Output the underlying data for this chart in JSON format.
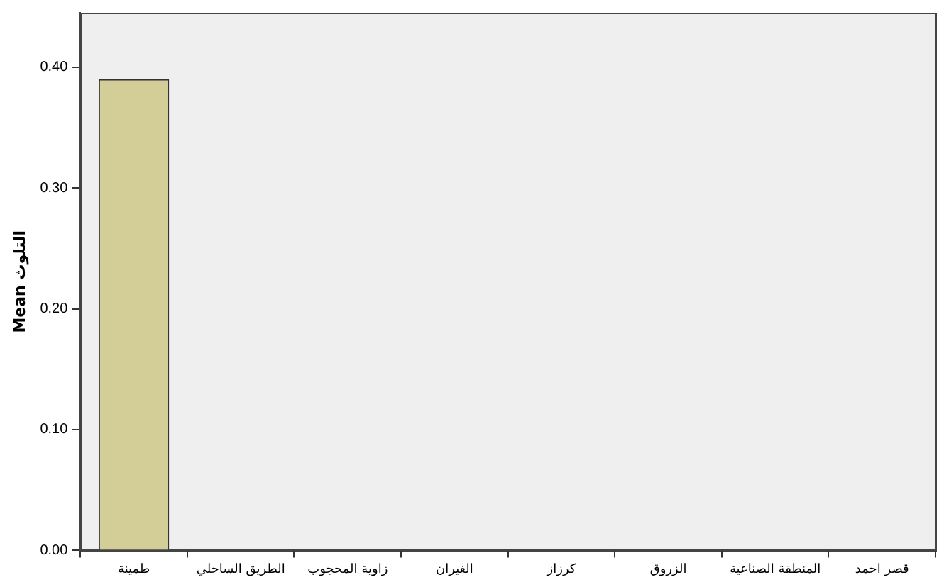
{
  "chart_data": {
    "type": "bar",
    "ylabel": "Mean التلوث",
    "categories": [
      "طمينة",
      "الطريق الساحلي",
      "زاوية المحجوب",
      "الغيران",
      "كرزاز",
      "الزروق",
      "المنطقة الصناعية",
      "قصر احمد"
    ],
    "values": [
      0.39,
      0,
      0,
      0,
      0,
      0,
      0,
      0
    ],
    "color": "#d3ce97",
    "ylim": [
      0,
      0.445
    ],
    "yticks": [
      {
        "value": 0,
        "label": "0.00"
      },
      {
        "value": 0.1,
        "label": "0.10"
      },
      {
        "value": 0.2,
        "label": "0.20"
      },
      {
        "value": 0.3,
        "label": "0.30"
      },
      {
        "value": 0.4,
        "label": "0.40"
      }
    ],
    "grid": false,
    "legend": false
  }
}
